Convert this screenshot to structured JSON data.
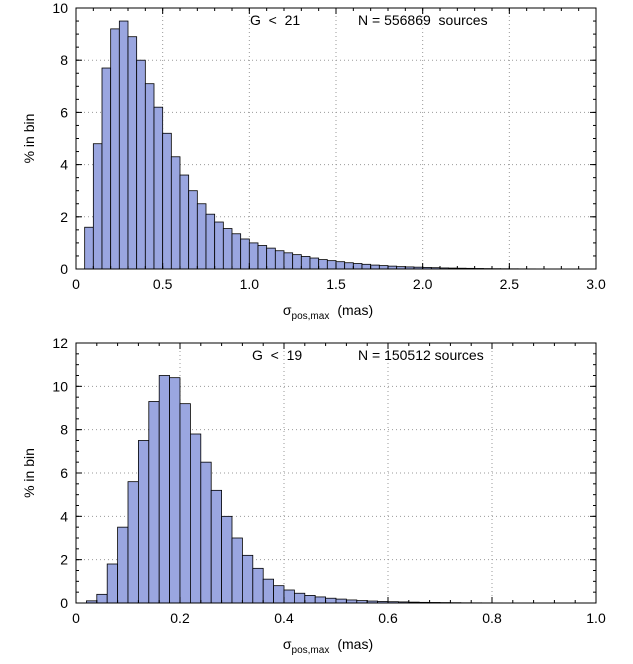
{
  "chart_data": [
    {
      "type": "bar",
      "annotation_cut": "G  <  21",
      "annotation_count": "N = 556869  sources",
      "ylabel": "% in bin",
      "xlabel_main": "σ",
      "xlabel_sub": "pos,max",
      "xlabel_unit": "(mas)",
      "xlim": [
        0,
        3.0
      ],
      "ylim": [
        0,
        10
      ],
      "xticks": [
        "0",
        "0.5",
        "1.0",
        "1.5",
        "2.0",
        "2.5",
        "3.0"
      ],
      "yticks": [
        "0",
        "2",
        "4",
        "6",
        "8",
        "10"
      ],
      "grid": true,
      "bar_color": "#9aa6e0",
      "bin_width": 0.05,
      "bin_start": 0.05,
      "values": [
        1.6,
        4.8,
        7.7,
        9.2,
        9.5,
        8.9,
        8.0,
        7.1,
        6.2,
        5.2,
        4.3,
        3.6,
        3.0,
        2.5,
        2.1,
        1.8,
        1.55,
        1.35,
        1.15,
        1.0,
        0.9,
        0.8,
        0.7,
        0.62,
        0.55,
        0.48,
        0.42,
        0.36,
        0.32,
        0.28,
        0.24,
        0.21,
        0.18,
        0.15,
        0.13,
        0.11,
        0.09,
        0.08,
        0.07,
        0.06,
        0.05,
        0.04,
        0.035,
        0.03,
        0.025,
        0.02,
        0.015,
        0.012,
        0.01,
        0.008,
        0.006,
        0.005,
        0.004,
        0.003,
        0.002,
        0.002,
        0.001,
        0.001,
        0.001
      ]
    },
    {
      "type": "bar",
      "annotation_cut": "G  <  19",
      "annotation_count": "N = 150512 sources",
      "ylabel": "% in bin",
      "xlabel_main": "σ",
      "xlabel_sub": "pos,max",
      "xlabel_unit": "(mas)",
      "xlim": [
        0,
        1.0
      ],
      "ylim": [
        0,
        12
      ],
      "xticks": [
        "0",
        "0.2",
        "0.4",
        "0.6",
        "0.8",
        "1.0"
      ],
      "yticks": [
        "0",
        "2",
        "4",
        "6",
        "8",
        "10",
        "12"
      ],
      "grid": true,
      "bar_color": "#9aa6e0",
      "bin_width": 0.02,
      "bin_start": 0.02,
      "values": [
        0.1,
        0.4,
        1.8,
        3.5,
        5.6,
        7.5,
        9.3,
        10.5,
        10.4,
        9.2,
        7.8,
        6.5,
        5.2,
        4.0,
        3.0,
        2.2,
        1.6,
        1.1,
        0.8,
        0.6,
        0.45,
        0.35,
        0.28,
        0.22,
        0.18,
        0.14,
        0.11,
        0.09,
        0.07,
        0.06,
        0.05,
        0.04,
        0.03,
        0.025,
        0.02,
        0.015,
        0.01,
        0.008,
        0.006,
        0.005,
        0.004,
        0.003,
        0.002,
        0.001,
        0.001,
        0.001,
        0.001,
        0.001,
        0.001
      ]
    }
  ]
}
